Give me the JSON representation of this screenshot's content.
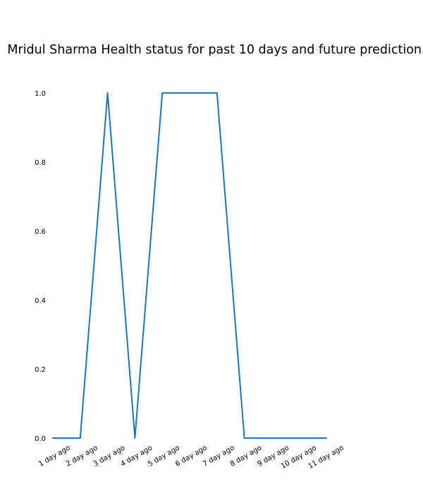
{
  "chart_data": {
    "type": "line",
    "title": "Mridul Sharma Health status for past 10 days and future prediction.",
    "xlabel": "",
    "ylabel": "",
    "categories": [
      "1 day ago",
      "2 day ago",
      "3 day ago",
      "4 day ago",
      "5 day ago",
      "6 day ago",
      "7 day ago",
      "8 day ago",
      "9 day ago",
      "10 day ago",
      "11 day ago"
    ],
    "series": [
      {
        "name": "Health status",
        "values": [
          0,
          0,
          1,
          0,
          1,
          1,
          1,
          0,
          0,
          0,
          0
        ],
        "color": "#1f77b4"
      }
    ],
    "ylim": [
      0,
      1
    ],
    "yticks": [
      {
        "value": 0.0,
        "label": "0.0"
      },
      {
        "value": 0.2,
        "label": "0.2"
      },
      {
        "value": 0.4,
        "label": "0.4"
      },
      {
        "value": 0.6,
        "label": "0.6"
      },
      {
        "value": 0.8,
        "label": "0.8"
      },
      {
        "value": 1.0,
        "label": "1.0"
      }
    ],
    "grid": false,
    "legend": "none"
  }
}
